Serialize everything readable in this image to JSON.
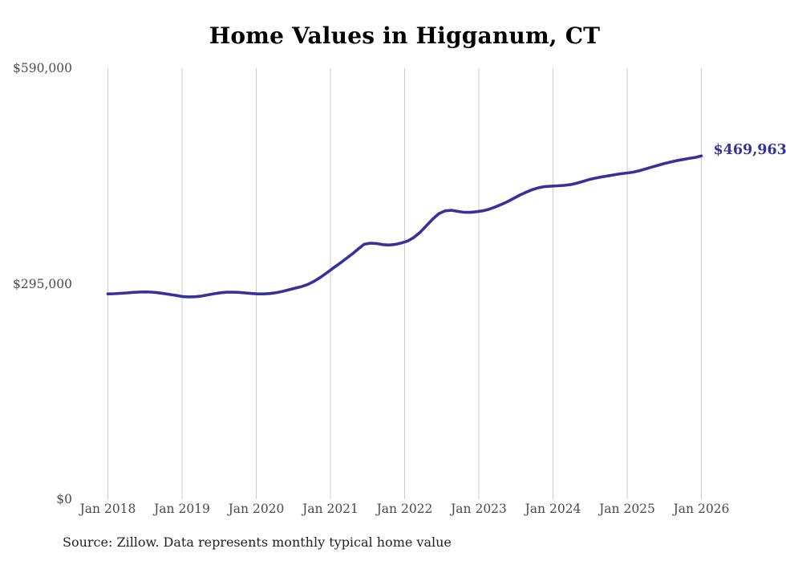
{
  "source_note": "Source: Zillow. Data represents monthly typical home value",
  "chart_data": {
    "type": "line",
    "title": "Home Values in Higganum, CT",
    "xlabel": "",
    "ylabel": "",
    "ylim": [
      0,
      590000
    ],
    "grid": "vertical-year-gridlines-only",
    "legend": "none",
    "x_frequency": "monthly",
    "x_start": "Jan 2018",
    "x_end": "Jan 2026",
    "xtick_labels": [
      "Jan 2018",
      "Jan 2019",
      "Jan 2020",
      "Jan 2021",
      "Jan 2022",
      "Jan 2023",
      "Jan 2024",
      "Jan 2025",
      "Jan 2026"
    ],
    "ytick_labels": [
      "$590,000",
      "$295,000",
      "$0"
    ],
    "ytick_values": [
      590000,
      295000,
      0
    ],
    "end_label": "$469,963",
    "latest_value": 469963,
    "line_color": "#363299",
    "grid_color": "#cccccc",
    "values": [
      281000,
      281300,
      281800,
      282400,
      283100,
      283600,
      283800,
      283500,
      282700,
      281500,
      280200,
      278800,
      277300,
      277000,
      277200,
      278100,
      279700,
      281300,
      282600,
      283300,
      283400,
      283100,
      282400,
      281600,
      281000,
      281000,
      281600,
      282800,
      284600,
      286800,
      289000,
      291000,
      294000,
      298300,
      303600,
      309600,
      316000,
      322000,
      328500,
      335000,
      342000,
      349000,
      350500,
      350000,
      348500,
      348000,
      348800,
      350800,
      353500,
      358500,
      365500,
      374500,
      383500,
      391000,
      394800,
      395500,
      394000,
      392800,
      392700,
      393600,
      394800,
      397000,
      400000,
      403500,
      407500,
      412000,
      416500,
      420500,
      424000,
      426500,
      428000,
      428600,
      429000,
      429600,
      430600,
      432500,
      435000,
      437500,
      439500,
      441100,
      442600,
      444000,
      445400,
      446500,
      447600,
      449500,
      452000,
      454500,
      457000,
      459400,
      461500,
      463400,
      465000,
      466500,
      467800,
      469963
    ]
  }
}
